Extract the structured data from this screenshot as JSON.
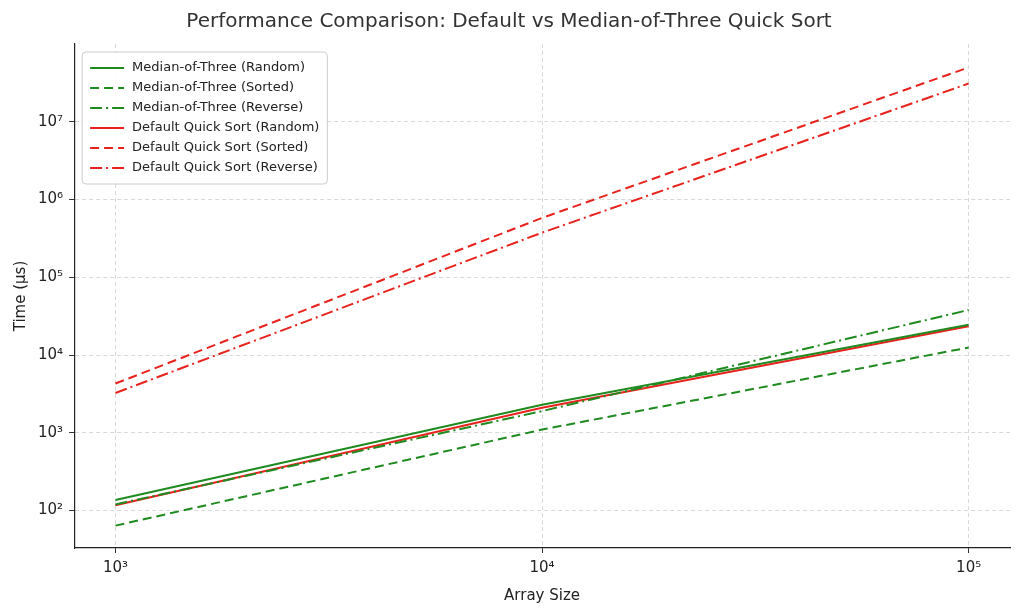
{
  "chart_data": {
    "type": "line",
    "title": "Performance Comparison: Default vs Median-of-Three Quick Sort",
    "x_label": "Array Size",
    "y_label": "Time (μs)",
    "x": [
      1000,
      10000,
      100000
    ],
    "series": [
      {
        "name": "Median-of-Three (Random)",
        "color": "#1f8a1f",
        "line_style": "solid",
        "values": [
          137,
          2300,
          24500
        ]
      },
      {
        "name": "Median-of-Three (Sorted)",
        "color": "#1f8a1f",
        "line_style": "dashed",
        "values": [
          64,
          1100,
          12500
        ]
      },
      {
        "name": "Median-of-Three (Reverse)",
        "color": "#1f8a1f",
        "line_style": "dashdot",
        "values": [
          120,
          1900,
          38000
        ]
      },
      {
        "name": "Default Quick Sort (Random)",
        "color": "#e8221c",
        "line_style": "solid",
        "values": [
          117,
          2100,
          23500
        ]
      },
      {
        "name": "Default Quick Sort (Sorted)",
        "color": "#e8221c",
        "line_style": "dashed",
        "values": [
          4300,
          580000,
          50000000
        ]
      },
      {
        "name": "Default Quick Sort (Reverse)",
        "color": "#e8221c",
        "line_style": "dashdot",
        "values": [
          3250,
          375000,
          31000000
        ]
      }
    ],
    "xlim": [
      800,
      125000
    ],
    "ylim": [
      33,
      100000000
    ],
    "xticks": [
      {
        "value": 1000,
        "label": "10³"
      },
      {
        "value": 10000,
        "label": "10⁴"
      },
      {
        "value": 100000,
        "label": "10⁵"
      }
    ],
    "yticks": [
      {
        "value": 100,
        "label": "10²"
      },
      {
        "value": 1000,
        "label": "10³"
      },
      {
        "value": 10000,
        "label": "10⁴"
      },
      {
        "value": 100000,
        "label": "10⁵"
      },
      {
        "value": 1000000,
        "label": "10⁶"
      },
      {
        "value": 10000000,
        "label": "10⁷"
      }
    ],
    "log": true,
    "grid": true,
    "legend": "upper left"
  }
}
